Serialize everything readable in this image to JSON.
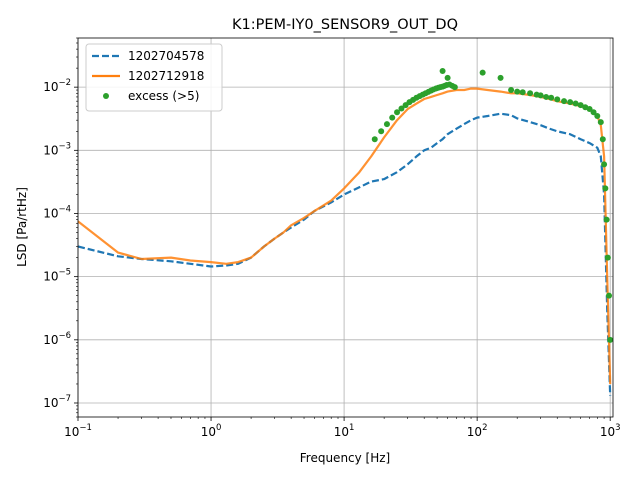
{
  "chart_data": {
    "type": "line",
    "title": "K1:PEM-IY0_SENSOR9_OUT_DQ",
    "xlabel": "Frequency [Hz]",
    "ylabel": "LSD [Pa/rtHz]",
    "x_scale": "log",
    "y_scale": "log",
    "xlim": [
      0.1,
      1050
    ],
    "ylim": [
      6e-08,
      0.06
    ],
    "grid": true,
    "legend_position": "top-left",
    "x_ticks": [
      {
        "value": 0.1,
        "base": "10",
        "exp": "−1"
      },
      {
        "value": 1,
        "base": "10",
        "exp": "0"
      },
      {
        "value": 10,
        "base": "10",
        "exp": "1"
      },
      {
        "value": 100,
        "base": "10",
        "exp": "2"
      },
      {
        "value": 1000,
        "base": "10",
        "exp": "3"
      }
    ],
    "y_ticks": [
      {
        "value": 1e-07,
        "base": "10",
        "exp": "−7"
      },
      {
        "value": 1e-06,
        "base": "10",
        "exp": "−6"
      },
      {
        "value": 1e-05,
        "base": "10",
        "exp": "−5"
      },
      {
        "value": 0.0001,
        "base": "10",
        "exp": "−4"
      },
      {
        "value": 0.001,
        "base": "10",
        "exp": "−3"
      },
      {
        "value": 0.01,
        "base": "10",
        "exp": "−2"
      }
    ],
    "series": [
      {
        "name": "1202704578",
        "color": "#1f77b4",
        "style": "dashed",
        "x": [
          0.1,
          0.2,
          0.3,
          0.5,
          0.7,
          1.0,
          1.3,
          1.6,
          2.0,
          2.5,
          3.0,
          3.5,
          4.0,
          5.0,
          6.0,
          8.0,
          10,
          13,
          16,
          20,
          25,
          30,
          35,
          40,
          45,
          50,
          55,
          60,
          70,
          80,
          90,
          100,
          120,
          150,
          180,
          200,
          250,
          300,
          350,
          400,
          500,
          600,
          700,
          800,
          850,
          900,
          950,
          1000
        ],
        "y": [
          3e-05,
          2.1e-05,
          1.9e-05,
          1.75e-05,
          1.6e-05,
          1.45e-05,
          1.5e-05,
          1.6e-05,
          2e-05,
          3e-05,
          4e-05,
          5e-05,
          6e-05,
          8e-05,
          0.00011,
          0.00015,
          0.0002,
          0.00026,
          0.00032,
          0.00035,
          0.00045,
          0.0006,
          0.0008,
          0.001,
          0.0011,
          0.0013,
          0.0015,
          0.0018,
          0.0022,
          0.0026,
          0.003,
          0.0033,
          0.0035,
          0.0038,
          0.0036,
          0.0032,
          0.0028,
          0.0025,
          0.0022,
          0.002,
          0.0018,
          0.0015,
          0.0013,
          0.0011,
          0.0008,
          0.0002,
          3e-06,
          1.3e-07
        ]
      },
      {
        "name": "1202712918",
        "color": "#ff7f0e",
        "style": "solid",
        "x": [
          0.1,
          0.2,
          0.3,
          0.5,
          0.7,
          1.0,
          1.3,
          1.6,
          2.0,
          2.5,
          3.0,
          3.5,
          4.0,
          5.0,
          6.0,
          8.0,
          10,
          13,
          16,
          20,
          25,
          30,
          35,
          40,
          45,
          50,
          55,
          60,
          70,
          80,
          90,
          100,
          120,
          150,
          180,
          200,
          250,
          300,
          350,
          400,
          500,
          600,
          700,
          800,
          850,
          900,
          950,
          1000
        ],
        "y": [
          7.5e-05,
          2.4e-05,
          1.9e-05,
          2e-05,
          1.8e-05,
          1.7e-05,
          1.6e-05,
          1.7e-05,
          2e-05,
          3e-05,
          4e-05,
          5e-05,
          6.5e-05,
          8.5e-05,
          0.00011,
          0.00016,
          0.00025,
          0.00045,
          0.0008,
          0.0016,
          0.003,
          0.0045,
          0.0055,
          0.0065,
          0.007,
          0.0075,
          0.008,
          0.0085,
          0.009,
          0.009,
          0.0095,
          0.0095,
          0.009,
          0.0085,
          0.008,
          0.008,
          0.0075,
          0.007,
          0.0065,
          0.006,
          0.0055,
          0.005,
          0.0045,
          0.0035,
          0.0025,
          0.0008,
          1e-05,
          2e-07
        ]
      },
      {
        "name": "excess (>5)",
        "color": "#2ca02c",
        "style": "markers",
        "x": [
          17,
          19,
          21,
          23,
          25,
          27,
          29,
          31,
          33,
          35,
          37,
          39,
          41,
          43,
          45,
          47,
          49,
          51,
          53,
          55,
          57,
          59,
          62,
          65,
          68,
          55,
          60,
          110,
          150,
          180,
          200,
          220,
          250,
          280,
          300,
          330,
          360,
          400,
          450,
          500,
          550,
          600,
          650,
          700,
          750,
          800,
          850,
          880,
          900,
          920,
          940,
          960,
          980,
          1000
        ],
        "y": [
          0.0015,
          0.002,
          0.0026,
          0.0033,
          0.004,
          0.0046,
          0.0052,
          0.0058,
          0.0063,
          0.0068,
          0.0072,
          0.0076,
          0.008,
          0.0084,
          0.0088,
          0.0092,
          0.0095,
          0.0098,
          0.01,
          0.0102,
          0.0105,
          0.0108,
          0.011,
          0.0105,
          0.01,
          0.018,
          0.014,
          0.017,
          0.014,
          0.009,
          0.0085,
          0.0083,
          0.008,
          0.0076,
          0.0074,
          0.007,
          0.0068,
          0.0064,
          0.006,
          0.0058,
          0.0055,
          0.0052,
          0.0048,
          0.0045,
          0.004,
          0.0035,
          0.0028,
          0.0015,
          0.0006,
          0.00025,
          8e-05,
          2e-05,
          5e-06,
          1e-06
        ]
      }
    ]
  }
}
